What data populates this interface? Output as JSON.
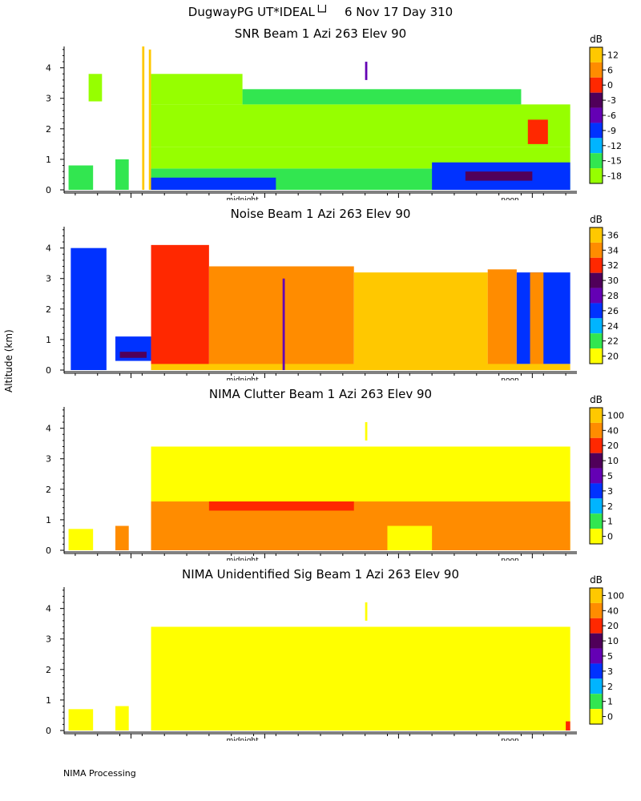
{
  "page_title": "DugwayPG UT*IDEAL└┘    6 Nov 17 Day 310",
  "y_axis_label": "Altitude (km)",
  "footer": "NIMA Processing",
  "chart_data": [
    {
      "type": "heatmap",
      "title": "SNR Beam 1 Azi 263 Elev 90",
      "units": "dB",
      "y_ticks": [
        0,
        1,
        2,
        3,
        4
      ],
      "ylim": [
        0,
        4.7
      ],
      "x_labels": [
        {
          "label": "midnight",
          "hour": 2.5
        },
        {
          "label": "noon",
          "hour": 14.5
        }
      ],
      "xlim_hours": [
        -5.5,
        17.5
      ],
      "scale_labels": [
        "12",
        "6",
        "0",
        "-3",
        "-6",
        "-9",
        "-12",
        "-15",
        "-18"
      ],
      "scale_colors": [
        "#ffc800",
        "#ff8c00",
        "#ff2800",
        "#50005a",
        "#6400b4",
        "#0032ff",
        "#00b4ff",
        "#32e650",
        "#96ff00"
      ],
      "gates": [
        {
          "t0": -5.3,
          "t1": -4.2,
          "z0": 0.0,
          "z1": 0.8,
          "lvl": 7
        },
        {
          "t0": -4.4,
          "t1": -3.8,
          "z0": 2.9,
          "z1": 3.8,
          "lvl": 8
        },
        {
          "t0": -3.2,
          "t1": -2.6,
          "z0": 0.0,
          "z1": 1.0,
          "lvl": 7
        },
        {
          "t0": -2.0,
          "t1": -1.9,
          "z0": 0.0,
          "z1": 4.7,
          "lvl": 0
        },
        {
          "t0": -1.7,
          "t1": -1.6,
          "z0": 0.0,
          "z1": 4.6,
          "lvl": 0
        },
        {
          "t0": -1.6,
          "t1": 17.2,
          "z0": 0.0,
          "z1": 0.7,
          "lvl": 7
        },
        {
          "t0": -1.6,
          "t1": 17.2,
          "z0": 0.7,
          "z1": 1.4,
          "lvl": 8
        },
        {
          "t0": -1.6,
          "t1": 17.2,
          "z0": 1.4,
          "z1": 2.8,
          "lvl": 8
        },
        {
          "t0": -1.6,
          "t1": 2.5,
          "z0": 2.8,
          "z1": 3.8,
          "lvl": 8
        },
        {
          "t0": 2.5,
          "t1": 15.0,
          "z0": 2.8,
          "z1": 3.3,
          "lvl": 7
        },
        {
          "t0": -1.6,
          "t1": 4.0,
          "z0": 0.0,
          "z1": 0.4,
          "lvl": 5
        },
        {
          "t0": 11.0,
          "t1": 17.2,
          "z0": 0.0,
          "z1": 0.9,
          "lvl": 5
        },
        {
          "t0": 12.5,
          "t1": 15.5,
          "z0": 0.3,
          "z1": 0.6,
          "lvl": 3
        },
        {
          "t0": 15.3,
          "t1": 16.2,
          "z0": 1.5,
          "z1": 2.3,
          "lvl": 2
        },
        {
          "t0": 8.0,
          "t1": 8.1,
          "z0": 3.6,
          "z1": 4.2,
          "lvl": 4
        }
      ]
    },
    {
      "type": "heatmap",
      "title": "Noise Beam 1 Azi 263 Elev 90",
      "units": "dB",
      "y_ticks": [
        0,
        1,
        2,
        3,
        4
      ],
      "ylim": [
        0,
        4.7
      ],
      "x_labels": [
        {
          "label": "midnight",
          "hour": 2.5
        },
        {
          "label": "noon",
          "hour": 14.5
        }
      ],
      "xlim_hours": [
        -5.5,
        17.5
      ],
      "scale_labels": [
        "36",
        "34",
        "32",
        "30",
        "28",
        "26",
        "24",
        "22",
        "20"
      ],
      "scale_colors": [
        "#ffc800",
        "#ff8c00",
        "#ff2800",
        "#50005a",
        "#6400b4",
        "#0032ff",
        "#00b4ff",
        "#32e650",
        "#ffff00"
      ],
      "gates": [
        {
          "t0": -5.2,
          "t1": -3.6,
          "z0": 0.0,
          "z1": 4.0,
          "lvl": 5
        },
        {
          "t0": -3.2,
          "t1": -1.6,
          "z0": 0.3,
          "z1": 1.1,
          "lvl": 5
        },
        {
          "t0": -3.0,
          "t1": -1.8,
          "z0": 0.4,
          "z1": 0.6,
          "lvl": 3
        },
        {
          "t0": -1.6,
          "t1": 1.0,
          "z0": 0.0,
          "z1": 4.1,
          "lvl": 2
        },
        {
          "t0": 1.0,
          "t1": 7.5,
          "z0": 0.0,
          "z1": 3.4,
          "lvl": 1
        },
        {
          "t0": 7.5,
          "t1": 13.5,
          "z0": 0.0,
          "z1": 3.2,
          "lvl": 0
        },
        {
          "t0": 13.5,
          "t1": 14.8,
          "z0": 0.0,
          "z1": 3.3,
          "lvl": 1
        },
        {
          "t0": 14.8,
          "t1": 17.2,
          "z0": 0.2,
          "z1": 3.2,
          "lvl": 5
        },
        {
          "t0": 15.4,
          "t1": 16.0,
          "z0": 0.0,
          "z1": 3.2,
          "lvl": 1
        },
        {
          "t0": -1.6,
          "t1": 17.2,
          "z0": 0.0,
          "z1": 0.2,
          "lvl": 0
        },
        {
          "t0": 4.3,
          "t1": 4.4,
          "z0": 0.0,
          "z1": 3.0,
          "lvl": 4
        }
      ]
    },
    {
      "type": "heatmap",
      "title": "NIMA Clutter Beam 1 Azi 263 Elev 90",
      "units": "dB",
      "y_ticks": [
        0,
        1,
        2,
        3,
        4
      ],
      "ylim": [
        0,
        4.7
      ],
      "x_labels": [
        {
          "label": "midnight",
          "hour": 2.5
        },
        {
          "label": "noon",
          "hour": 14.5
        }
      ],
      "xlim_hours": [
        -5.5,
        17.5
      ],
      "scale_labels": [
        "100",
        "40",
        "20",
        "10",
        "5",
        "3",
        "2",
        "1",
        "0"
      ],
      "scale_colors": [
        "#ffc800",
        "#ff8c00",
        "#ff2800",
        "#50005a",
        "#6400b4",
        "#0032ff",
        "#00b4ff",
        "#32e650",
        "#ffff00"
      ],
      "gates": [
        {
          "t0": -5.3,
          "t1": -4.2,
          "z0": 0.0,
          "z1": 0.7,
          "lvl": 8
        },
        {
          "t0": -3.2,
          "t1": -2.6,
          "z0": 0.0,
          "z1": 0.8,
          "lvl": 1
        },
        {
          "t0": -1.6,
          "t1": 17.2,
          "z0": 0.0,
          "z1": 3.4,
          "lvl": 8
        },
        {
          "t0": -1.6,
          "t1": 17.2,
          "z0": 0.0,
          "z1": 1.6,
          "lvl": 1
        },
        {
          "t0": 1.0,
          "t1": 7.5,
          "z0": 1.3,
          "z1": 1.6,
          "lvl": 2
        },
        {
          "t0": 9.0,
          "t1": 11.0,
          "z0": 0.0,
          "z1": 0.8,
          "lvl": 8
        },
        {
          "t0": 8.0,
          "t1": 8.1,
          "z0": 3.6,
          "z1": 4.2,
          "lvl": 8
        }
      ]
    },
    {
      "type": "heatmap",
      "title": "NIMA Unidentified Sig Beam 1 Azi 263 Elev 90",
      "units": "dB",
      "y_ticks": [
        0,
        1,
        2,
        3,
        4
      ],
      "ylim": [
        0,
        4.7
      ],
      "x_labels": [
        {
          "label": "midnight",
          "hour": 2.5
        },
        {
          "label": "noon",
          "hour": 14.5
        }
      ],
      "xlim_hours": [
        -5.5,
        17.5
      ],
      "scale_labels": [
        "100",
        "40",
        "20",
        "10",
        "5",
        "3",
        "2",
        "1",
        "0"
      ],
      "scale_colors": [
        "#ffc800",
        "#ff8c00",
        "#ff2800",
        "#50005a",
        "#6400b4",
        "#0032ff",
        "#00b4ff",
        "#32e650",
        "#ffff00"
      ],
      "gates": [
        {
          "t0": -5.3,
          "t1": -4.2,
          "z0": 0.0,
          "z1": 0.7,
          "lvl": 8
        },
        {
          "t0": -3.2,
          "t1": -2.6,
          "z0": 0.0,
          "z1": 0.8,
          "lvl": 8
        },
        {
          "t0": -1.6,
          "t1": 17.2,
          "z0": 0.0,
          "z1": 3.4,
          "lvl": 8
        },
        {
          "t0": 17.0,
          "t1": 17.2,
          "z0": 0.0,
          "z1": 0.3,
          "lvl": 2
        },
        {
          "t0": 8.0,
          "t1": 8.1,
          "z0": 3.6,
          "z1": 4.2,
          "lvl": 8
        }
      ]
    }
  ]
}
